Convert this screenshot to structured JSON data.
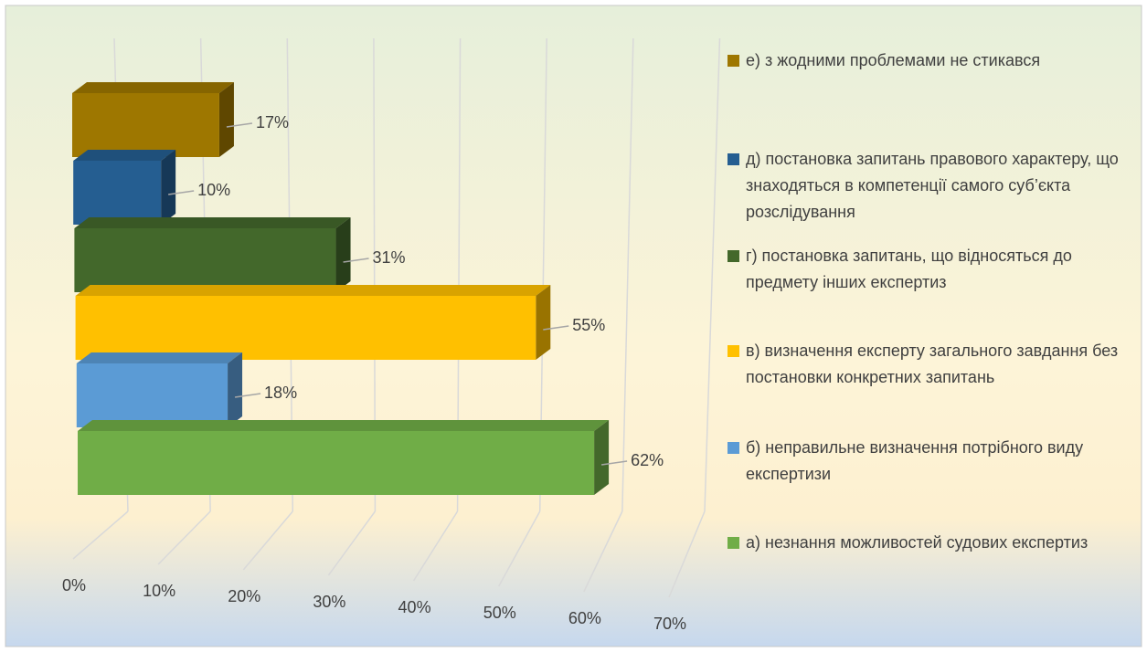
{
  "chart_data": {
    "type": "bar",
    "orientation": "horizontal",
    "categories": [
      "а) незнання можливостей судових експертиз",
      "б) неправильне визначення потрібного виду експертизи",
      "в) визначення експерту загального завдання без постановки конкретних запитань",
      "г) постановка запитань, що відносяться до предмету інших експертиз",
      "д) постановка запитань правового характеру, що знаходяться в компетенції самого суб’єкта розслідування",
      "е) з жодними проблемами не стикався"
    ],
    "values": [
      62,
      18,
      55,
      31,
      10,
      17
    ],
    "value_labels": [
      "62%",
      "18%",
      "55%",
      "31%",
      "10%",
      "17%"
    ],
    "colors": [
      "#70ad47",
      "#5b9bd5",
      "#ffc000",
      "#43682b",
      "#255e91",
      "#9e7700"
    ],
    "xlim": [
      0,
      70
    ],
    "xticks": [
      {
        "value": 0,
        "label": "0%"
      },
      {
        "value": 10,
        "label": "10%"
      },
      {
        "value": 20,
        "label": "20%"
      },
      {
        "value": 30,
        "label": "30%"
      },
      {
        "value": 40,
        "label": "40%"
      },
      {
        "value": 50,
        "label": "50%"
      },
      {
        "value": 60,
        "label": "60%"
      },
      {
        "value": 70,
        "label": "70%"
      }
    ],
    "grid": true,
    "legend": "right"
  }
}
